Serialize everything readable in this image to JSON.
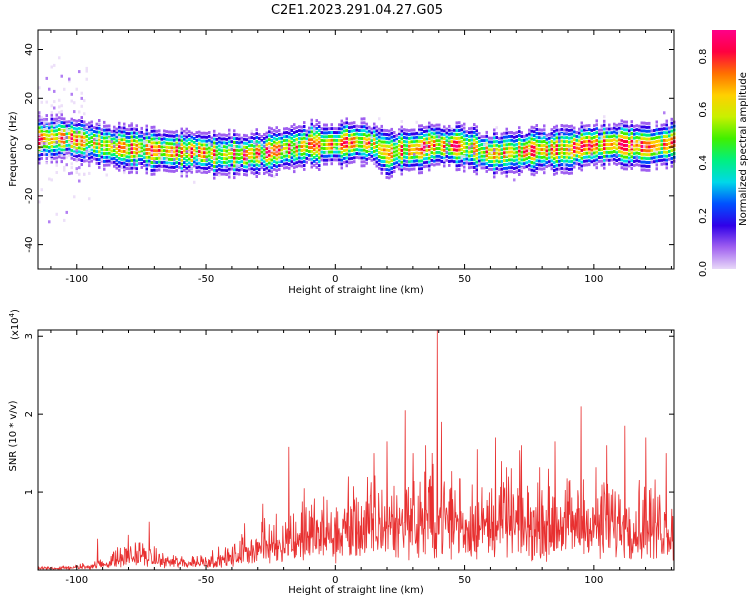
{
  "figure": {
    "title": "C2E1.2023.291.04.27.G05"
  },
  "chart_data": [
    {
      "type": "heatmap",
      "xlabel": "Height of straight line (km)",
      "ylabel": "Frequency (Hz)",
      "xlim": [
        -115,
        131
      ],
      "ylim": [
        -50,
        48
      ],
      "xticks": [
        -100,
        -50,
        0,
        50,
        100
      ],
      "yticks": [
        -40,
        -20,
        0,
        20,
        40
      ],
      "ridge": {
        "x": [
          -115,
          -105,
          -95,
          -85,
          -75,
          -65,
          -55,
          -45,
          -35,
          -25,
          -18,
          -10,
          0,
          5,
          10,
          15,
          20,
          25,
          30,
          40,
          50,
          60,
          70,
          80,
          90,
          100,
          110,
          120,
          131
        ],
        "y": [
          3,
          4,
          2,
          0,
          -1,
          -2,
          -2,
          -3,
          -3,
          -2,
          0,
          1,
          1,
          2,
          2,
          1,
          -3,
          -1,
          -1,
          1,
          0,
          -3,
          -2,
          -1,
          -1,
          1,
          1,
          0,
          2
        ]
      },
      "colorbar": {
        "label": "Normalized spectral amplitude",
        "range": [
          0,
          0.9
        ],
        "ticks": [
          0.0,
          0.2,
          0.4,
          0.6,
          0.8
        ],
        "tick_labels": [
          "0.0",
          "0.2",
          "0.4",
          "0.6",
          "0.8"
        ],
        "colors": [
          "#e8d8f8",
          "#a060f0",
          "#3000e8",
          "#0050ff",
          "#00d8e8",
          "#00f080",
          "#40f000",
          "#c8f000",
          "#ffd000",
          "#ff7000",
          "#ff0040",
          "#ff0088"
        ]
      }
    },
    {
      "type": "line",
      "xlabel": "Height of straight line (km)",
      "ylabel": "SNR (10 * v/v)",
      "y_scale_label": "(x10",
      "y_scale_exp": "4",
      "xlim": [
        -115,
        131
      ],
      "ylim": [
        0,
        3.08
      ],
      "xticks": [
        -100,
        -50,
        0,
        50,
        100
      ],
      "yticks": [
        1,
        2,
        3
      ],
      "series": [
        {
          "color": "#e83030",
          "envelope_x": [
            -115,
            -100,
            -90,
            -80,
            -75,
            -70,
            -60,
            -50,
            -45,
            -40,
            -35,
            -30,
            -25,
            -20,
            -15,
            -10,
            0,
            10,
            20,
            30,
            35,
            38,
            40,
            42,
            45,
            50,
            60,
            70,
            80,
            90,
            100,
            110,
            120,
            131
          ],
          "envelope_y": [
            0.03,
            0.05,
            0.12,
            0.28,
            0.3,
            0.2,
            0.15,
            0.18,
            0.2,
            0.25,
            0.38,
            0.45,
            0.55,
            0.6,
            0.65,
            0.72,
            0.75,
            0.85,
            0.95,
            1.0,
            1.05,
            1.08,
            1.1,
            1.08,
            1.05,
            0.92,
            0.95,
            0.95,
            0.95,
            0.92,
            0.95,
            0.95,
            0.9,
            0.85
          ],
          "peaks": [
            {
              "x": -92,
              "y": 0.4
            },
            {
              "x": -80,
              "y": 0.45
            },
            {
              "x": -72,
              "y": 0.62
            },
            {
              "x": -35,
              "y": 0.6
            },
            {
              "x": -28,
              "y": 0.85
            },
            {
              "x": -18,
              "y": 1.58
            },
            {
              "x": -12,
              "y": 1.05
            },
            {
              "x": 5,
              "y": 1.2
            },
            {
              "x": 15,
              "y": 1.5
            },
            {
              "x": 20,
              "y": 1.65
            },
            {
              "x": 27,
              "y": 2.05
            },
            {
              "x": 30,
              "y": 1.5
            },
            {
              "x": 35,
              "y": 1.6
            },
            {
              "x": 39.5,
              "y": 3.08
            },
            {
              "x": 41,
              "y": 1.9
            },
            {
              "x": 55,
              "y": 1.55
            },
            {
              "x": 62,
              "y": 1.7
            },
            {
              "x": 72,
              "y": 1.6
            },
            {
              "x": 85,
              "y": 1.65
            },
            {
              "x": 95,
              "y": 2.1
            },
            {
              "x": 105,
              "y": 1.6
            },
            {
              "x": 112,
              "y": 1.85
            },
            {
              "x": 120,
              "y": 1.7
            },
            {
              "x": 128,
              "y": 1.5
            }
          ]
        }
      ]
    }
  ]
}
